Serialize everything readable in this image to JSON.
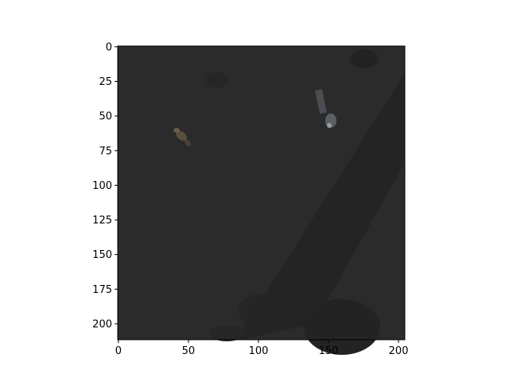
{
  "figure": {
    "background": "#ffffff",
    "image_base_color": "#2a2a2a",
    "x_ticks": [
      "0",
      "50",
      "100",
      "150",
      "200"
    ],
    "y_ticks": [
      "0",
      "25",
      "50",
      "75",
      "100",
      "125",
      "150",
      "175",
      "200"
    ],
    "x_range": [
      -0.5,
      204.5
    ],
    "y_range": [
      211.5,
      -0.5
    ],
    "content": "dark grayscale overhead image with two small objects"
  }
}
